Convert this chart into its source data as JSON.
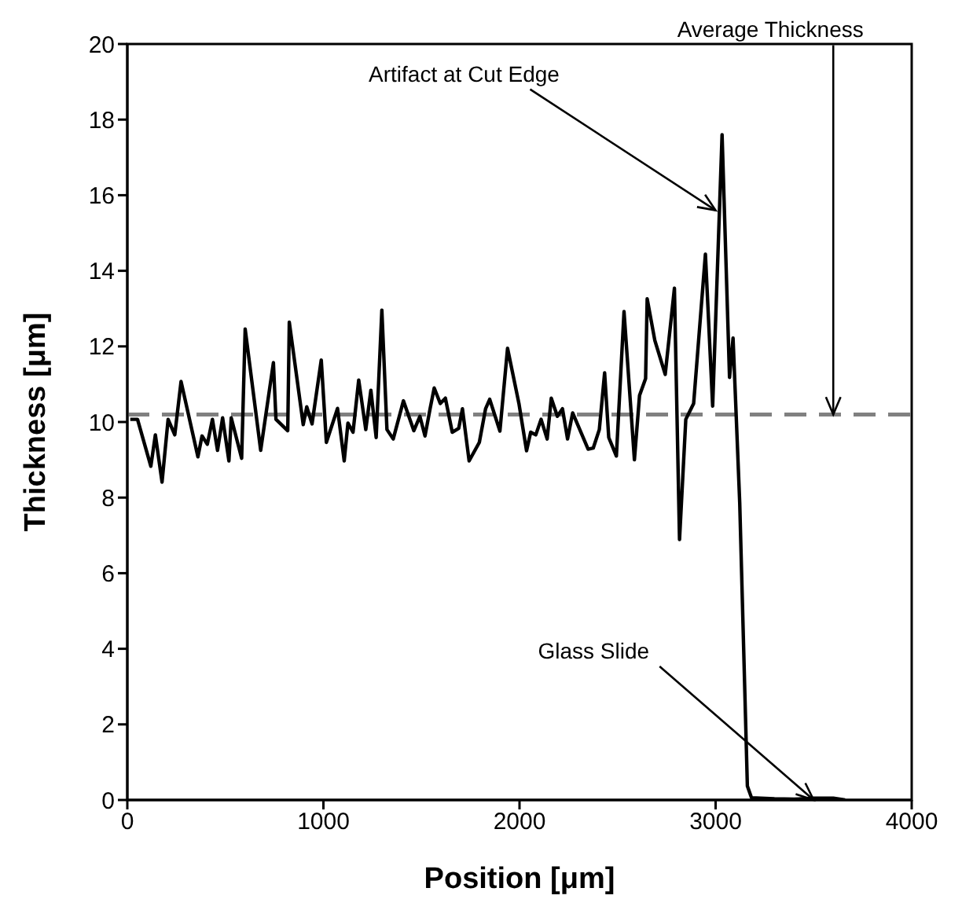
{
  "chart_data": {
    "type": "line",
    "xlabel": "Position [μm]",
    "ylabel": "Thickness [μm]",
    "x": [
      15,
      52,
      120,
      143,
      177,
      208,
      242,
      274,
      360,
      381,
      408,
      434,
      460,
      486,
      518,
      530,
      583,
      601,
      680,
      745,
      758,
      818,
      826,
      897,
      915,
      942,
      989,
      1015,
      1072,
      1106,
      1125,
      1151,
      1180,
      1216,
      1242,
      1269,
      1298,
      1324,
      1356,
      1408,
      1461,
      1492,
      1518,
      1544,
      1565,
      1596,
      1622,
      1657,
      1690,
      1709,
      1743,
      1795,
      1827,
      1848,
      1900,
      1939,
      1997,
      2036,
      2057,
      2083,
      2110,
      2141,
      2162,
      2193,
      2219,
      2245,
      2271,
      2350,
      2376,
      2407,
      2434,
      2455,
      2494,
      2533,
      2586,
      2612,
      2643,
      2651,
      2690,
      2743,
      2790,
      2816,
      2848,
      2888,
      2948,
      2985,
      3033,
      3071,
      3089,
      3123,
      3162,
      3183,
      3300,
      3400,
      3500,
      3600,
      3660
    ],
    "series": [
      {
        "color": "#000000",
        "values": [
          10.07,
          10.07,
          8.83,
          9.66,
          8.41,
          10.07,
          9.66,
          11.07,
          9.08,
          9.63,
          9.41,
          10.07,
          9.25,
          10.11,
          8.97,
          10.11,
          9.04,
          12.46,
          9.25,
          11.57,
          10.07,
          9.77,
          12.64,
          9.93,
          10.4,
          9.95,
          11.64,
          9.46,
          10.36,
          8.97,
          9.97,
          9.73,
          11.11,
          9.8,
          10.84,
          9.59,
          12.96,
          9.8,
          9.55,
          10.56,
          9.77,
          10.15,
          9.63,
          10.35,
          10.9,
          10.49,
          10.63,
          9.73,
          9.83,
          10.35,
          8.97,
          9.46,
          10.35,
          10.6,
          9.76,
          11.95,
          10.49,
          9.24,
          9.73,
          9.66,
          10.07,
          9.55,
          10.63,
          10.15,
          10.35,
          9.55,
          10.24,
          9.28,
          9.31,
          9.8,
          11.3,
          9.59,
          9.1,
          12.92,
          9.0,
          10.7,
          11.15,
          13.26,
          12.16,
          11.26,
          13.54,
          6.89,
          10.07,
          10.49,
          14.44,
          10.42,
          17.6,
          11.18,
          12.22,
          7.86,
          0.37,
          0.06,
          0.03,
          0.02,
          0.05,
          0.05,
          0
        ]
      }
    ],
    "xlim": [
      0,
      4000
    ],
    "xticks": [
      0,
      1000,
      2000,
      3000,
      4000
    ],
    "ylim": [
      0,
      20
    ],
    "yticks": [
      0,
      2,
      4,
      6,
      8,
      10,
      12,
      14,
      16,
      18,
      20
    ],
    "grid": false,
    "legend": false,
    "marker": "none",
    "line_style": "solid",
    "ref_lines": [
      {
        "axis": "y",
        "value": 10.2,
        "color": "#808080",
        "line_style": "dashed"
      }
    ],
    "annotations": [
      {
        "text": "Artifact at Cut Edge",
        "x": 3000,
        "y": 15.6
      },
      {
        "text": "Average Thickness",
        "x": 3600,
        "y": 10.2
      },
      {
        "text": "Glass Slide",
        "x": 3500,
        "y": 0
      }
    ]
  }
}
